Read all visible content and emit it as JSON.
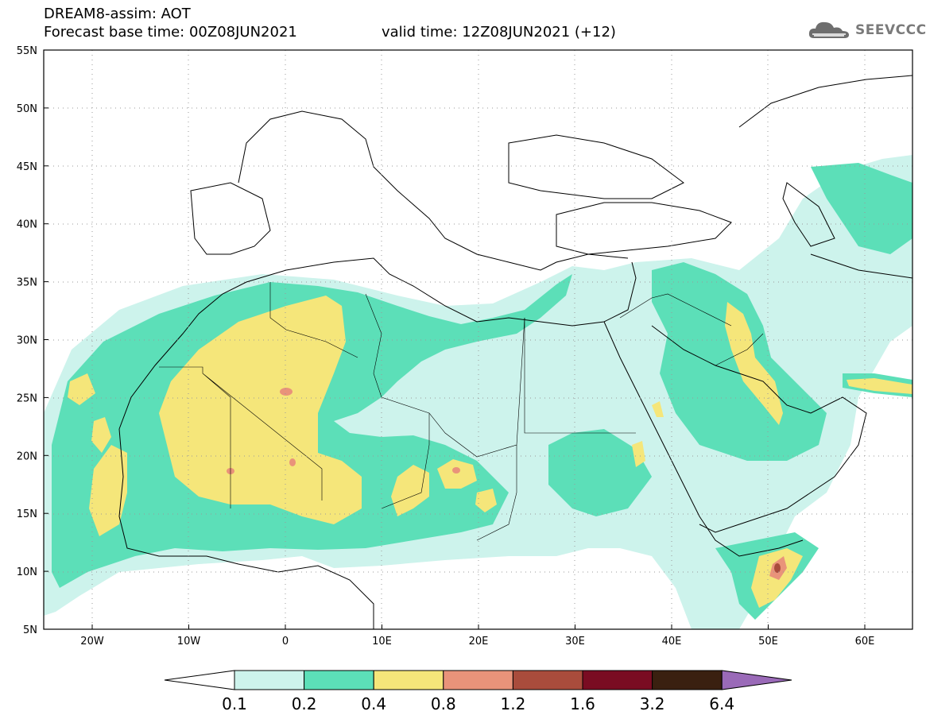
{
  "header": {
    "model_line": "DREAM8-assim: AOT",
    "base_time_line": "Forecast base time: 00Z08JUN2021",
    "valid_time_line": "valid time: 12Z08JUN2021 (+12)",
    "logo_text": "SEEVCCC"
  },
  "axes": {
    "lat_labels": [
      "55N",
      "50N",
      "45N",
      "40N",
      "35N",
      "30N",
      "25N",
      "20N",
      "15N",
      "10N",
      "5N"
    ],
    "lon_labels": [
      "20W",
      "10W",
      "0",
      "10E",
      "20E",
      "30E",
      "40E",
      "50E",
      "60E"
    ]
  },
  "colorbar": {
    "tick_labels": [
      "0.1",
      "0.2",
      "0.4",
      "0.8",
      "1.2",
      "1.6",
      "3.2",
      "6.4"
    ],
    "colors": [
      "#cdf3ec",
      "#5cdfb8",
      "#f5e67a",
      "#e9937a",
      "#a94c3c",
      "#7a0c22",
      "#3a2010",
      "#9a6ab8"
    ]
  },
  "map": {
    "background": "#ffffff",
    "grid": "dotted",
    "extent": {
      "lon": [
        -25,
        65
      ],
      "lat": [
        5,
        55
      ]
    }
  }
}
